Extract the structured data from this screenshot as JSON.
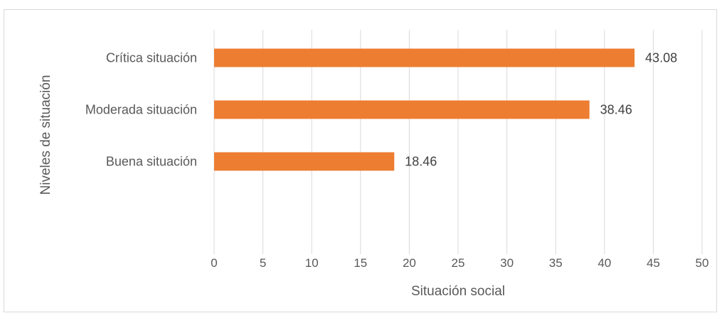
{
  "chart_data": {
    "type": "bar",
    "orientation": "horizontal",
    "categories": [
      "Crítica situación",
      "Moderada situación",
      "Buena situación"
    ],
    "values": [
      43.08,
      38.46,
      18.46
    ],
    "value_labels": [
      "43.08",
      "38.46",
      "18.46"
    ],
    "xlabel": "Situación social",
    "ylabel": "Niveles de situación",
    "xlim": [
      0,
      50
    ],
    "xticks": [
      0,
      5,
      10,
      15,
      20,
      25,
      30,
      35,
      40,
      45,
      50
    ],
    "xtick_labels": [
      "0",
      "5",
      "10",
      "15",
      "20",
      "25",
      "30",
      "35",
      "40",
      "45",
      "50"
    ],
    "grid": "vertical",
    "legend": "none",
    "bar_color": "#ED7D31",
    "grid_color": "#d9d9d9"
  }
}
